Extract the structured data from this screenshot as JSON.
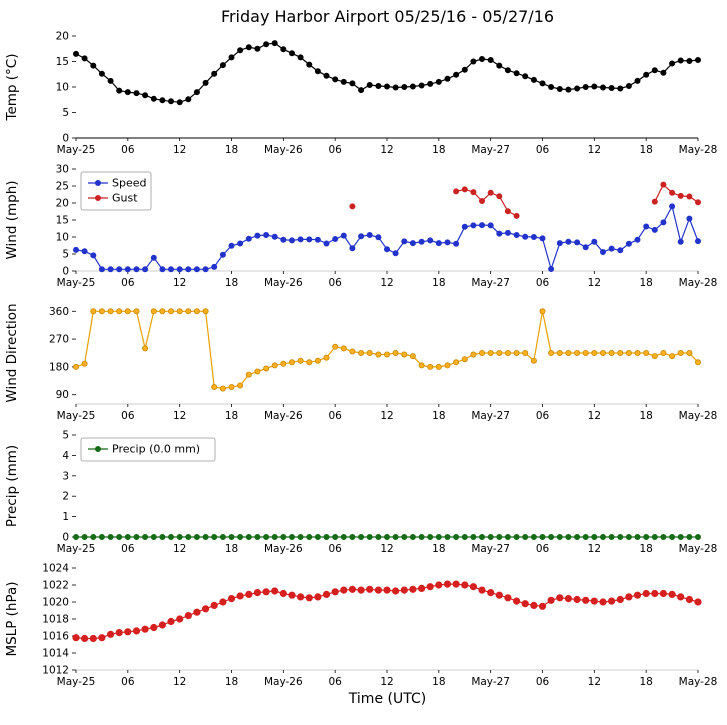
{
  "title": "Friday Harbor Airport 05/25/16 - 05/27/16",
  "chart_data": {
    "type": "line",
    "title": "Friday Harbor Airport 05/25/16 - 05/27/16",
    "xlabel": "Time (UTC)",
    "x_hours_range": [
      0,
      72
    ],
    "x_tick_hours": [
      0,
      6,
      12,
      18,
      24,
      30,
      36,
      42,
      48,
      54,
      60,
      66,
      72
    ],
    "x_tick_labels": [
      "May-25",
      "06",
      "12",
      "18",
      "May-26",
      "06",
      "12",
      "18",
      "May-27",
      "06",
      "12",
      "18",
      "May-28"
    ],
    "grid": false,
    "panels": [
      {
        "id": "temp",
        "ylabel": "Temp (°C)",
        "ylim": [
          0,
          20
        ],
        "yticks": [
          0,
          5,
          10,
          15,
          20
        ],
        "legend": false,
        "series": [
          {
            "name": "Temp",
            "color": "#000000",
            "values": [
              16.5,
              15.6,
              14.2,
              12.6,
              11.2,
              9.3,
              9.0,
              8.8,
              8.4,
              7.7,
              7.4,
              7.2,
              7.0,
              7.6,
              9.0,
              10.8,
              12.6,
              14.3,
              15.8,
              17.2,
              17.8,
              17.5,
              18.4,
              18.6,
              17.4,
              16.6,
              15.8,
              14.4,
              13.1,
              12.2,
              11.5,
              11.0,
              10.7,
              9.4,
              10.4,
              10.2,
              10.1,
              9.9,
              10.0,
              10.1,
              10.3,
              10.6,
              11.0,
              11.6,
              12.4,
              13.4,
              15.0,
              15.5,
              15.3,
              14.2,
              13.3,
              12.7,
              12.1,
              11.4,
              10.7,
              10.0,
              9.6,
              9.5,
              9.7,
              10.0,
              10.1,
              9.9,
              9.8,
              9.7,
              10.2,
              11.2,
              12.4,
              13.3,
              12.8,
              14.6,
              15.2,
              15.1,
              15.3
            ]
          }
        ]
      },
      {
        "id": "wind",
        "ylabel": "Wind (mph)",
        "ylim": [
          0,
          30
        ],
        "yticks": [
          0,
          5,
          10,
          15,
          20,
          25,
          30
        ],
        "legend": true,
        "series": [
          {
            "name": "Speed",
            "color": "#2233cc",
            "values": [
              6.2,
              5.8,
              4.6,
              0.5,
              0.5,
              0.5,
              0.5,
              0.5,
              0.5,
              3.9,
              0.5,
              0.5,
              0.5,
              0.5,
              0.5,
              0.5,
              1.2,
              4.8,
              7.4,
              8.1,
              9.5,
              10.4,
              10.6,
              10.1,
              9.2,
              9.0,
              9.3,
              9.3,
              9.2,
              8.1,
              9.4,
              10.4,
              6.7,
              10.2,
              10.6,
              9.9,
              6.4,
              5.2,
              8.7,
              8.2,
              8.6,
              9.0,
              8.2,
              8.4,
              8.0,
              13.0,
              13.4,
              13.5,
              13.4,
              11.0,
              11.2,
              10.6,
              10.1,
              10.0,
              9.6,
              0.6,
              8.2,
              8.6,
              8.4,
              7.0,
              8.6,
              5.6,
              6.6,
              6.1,
              8.0,
              9.2,
              13.1,
              12.1,
              14.3,
              19.0,
              8.6,
              15.4,
              8.8
            ]
          },
          {
            "name": "Gust",
            "color": "#cc2222",
            "values": [
              null,
              null,
              null,
              null,
              null,
              null,
              null,
              null,
              null,
              null,
              null,
              null,
              null,
              null,
              null,
              null,
              null,
              null,
              null,
              null,
              null,
              null,
              null,
              null,
              null,
              null,
              null,
              null,
              null,
              null,
              null,
              null,
              19.0,
              null,
              null,
              null,
              null,
              null,
              null,
              null,
              null,
              null,
              null,
              null,
              23.4,
              24.0,
              23.2,
              20.6,
              23.0,
              22.0,
              17.6,
              16.2,
              null,
              null,
              null,
              null,
              null,
              null,
              null,
              null,
              null,
              null,
              null,
              null,
              null,
              null,
              null,
              20.4,
              25.4,
              23.0,
              22.1,
              21.9,
              20.2
            ]
          }
        ]
      },
      {
        "id": "winddir",
        "ylabel": "Wind Direction",
        "ylim": [
          60,
          390
        ],
        "yticks": [
          90,
          180,
          270,
          360
        ],
        "legend": false,
        "series": [
          {
            "name": "Wind Direction",
            "color": "#e8a000",
            "marker_fill": "#ffb020",
            "marker_edge": "#c98700",
            "values": [
              180,
              190,
              360,
              360,
              360,
              360,
              360,
              360,
              240,
              360,
              360,
              360,
              360,
              360,
              360,
              360,
              115,
              110,
              115,
              120,
              155,
              165,
              175,
              185,
              190,
              195,
              200,
              195,
              200,
              210,
              245,
              240,
              230,
              225,
              225,
              220,
              220,
              225,
              220,
              215,
              185,
              180,
              180,
              185,
              195,
              205,
              220,
              225,
              225,
              225,
              225,
              225,
              225,
              200,
              360,
              225,
              225,
              225,
              225,
              225,
              225,
              225,
              225,
              225,
              225,
              225,
              225,
              215,
              225,
              215,
              225,
              225,
              195
            ]
          }
        ]
      },
      {
        "id": "precip",
        "ylabel": "Precip (mm)",
        "ylim": [
          0,
          5
        ],
        "yticks": [
          0,
          1,
          2,
          3,
          4,
          5
        ],
        "legend": true,
        "series": [
          {
            "name": "Precip (0.0 mm)",
            "color": "#166b16",
            "values": [
              0,
              0,
              0,
              0,
              0,
              0,
              0,
              0,
              0,
              0,
              0,
              0,
              0,
              0,
              0,
              0,
              0,
              0,
              0,
              0,
              0,
              0,
              0,
              0,
              0,
              0,
              0,
              0,
              0,
              0,
              0,
              0,
              0,
              0,
              0,
              0,
              0,
              0,
              0,
              0,
              0,
              0,
              0,
              0,
              0,
              0,
              0,
              0,
              0,
              0,
              0,
              0,
              0,
              0,
              0,
              0,
              0,
              0,
              0,
              0,
              0,
              0,
              0,
              0,
              0,
              0,
              0,
              0,
              0,
              0,
              0,
              0,
              0
            ]
          }
        ]
      },
      {
        "id": "mslp",
        "ylabel": "MSLP (hPa)",
        "ylim": [
          1012,
          1024
        ],
        "yticks": [
          1012,
          1014,
          1016,
          1018,
          1020,
          1022,
          1024
        ],
        "legend": false,
        "series": [
          {
            "name": "MSLP",
            "color": "#d62020",
            "values": [
              1015.8,
              1015.7,
              1015.7,
              1015.8,
              1016.2,
              1016.4,
              1016.5,
              1016.6,
              1016.8,
              1017.0,
              1017.3,
              1017.7,
              1018.0,
              1018.4,
              1018.8,
              1019.2,
              1019.6,
              1020.0,
              1020.4,
              1020.7,
              1020.9,
              1021.1,
              1021.2,
              1021.3,
              1021.0,
              1020.8,
              1020.6,
              1020.5,
              1020.6,
              1020.9,
              1021.2,
              1021.4,
              1021.5,
              1021.4,
              1021.5,
              1021.4,
              1021.4,
              1021.3,
              1021.4,
              1021.5,
              1021.6,
              1021.8,
              1022.0,
              1022.1,
              1022.1,
              1022.0,
              1021.8,
              1021.4,
              1021.1,
              1020.8,
              1020.5,
              1020.1,
              1019.8,
              1019.6,
              1019.5,
              1020.2,
              1020.5,
              1020.4,
              1020.3,
              1020.2,
              1020.1,
              1020.0,
              1020.1,
              1020.3,
              1020.6,
              1020.8,
              1021.0,
              1021.0,
              1021.0,
              1020.9,
              1020.6,
              1020.3,
              1020.0
            ]
          }
        ]
      }
    ]
  }
}
